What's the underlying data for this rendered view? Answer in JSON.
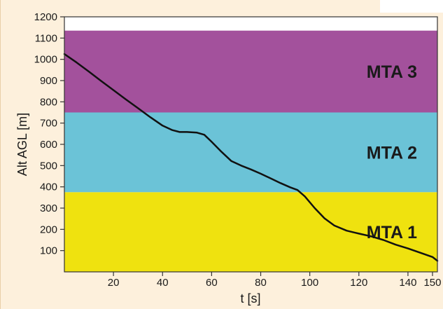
{
  "chart_data": {
    "type": "line",
    "title": "",
    "xlabel": "t [s]",
    "ylabel": "Alt AGL [m]",
    "xlim": [
      0,
      152
    ],
    "ylim": [
      0,
      1200
    ],
    "xticks": [
      20,
      40,
      60,
      80,
      100,
      120,
      140,
      150
    ],
    "yticks": [
      100,
      200,
      300,
      400,
      500,
      600,
      700,
      800,
      900,
      1000,
      1100,
      1200
    ],
    "grid": false,
    "legend": "none",
    "bands": [
      {
        "label": "MTA 1",
        "from": 0,
        "to": 375,
        "color": "#efe20f"
      },
      {
        "label": "MTA 2",
        "from": 375,
        "to": 750,
        "color": "#6bc3d7"
      },
      {
        "label": "MTA 3",
        "from": 750,
        "to": 1135,
        "color": "#a3519c"
      }
    ],
    "series": [
      {
        "color": "#111111",
        "x": [
          0,
          5,
          10,
          15,
          20,
          25,
          30,
          35,
          40,
          44,
          47,
          50,
          54,
          57,
          60,
          64,
          68,
          72,
          76,
          80,
          84,
          88,
          92,
          95,
          98,
          102,
          106,
          110,
          115,
          120,
          125,
          130,
          135,
          140,
          145,
          150,
          152
        ],
        "y": [
          1025,
          985,
          942,
          898,
          855,
          812,
          770,
          728,
          688,
          667,
          658,
          658,
          655,
          645,
          612,
          565,
          522,
          500,
          482,
          462,
          440,
          418,
          398,
          385,
          355,
          300,
          252,
          218,
          194,
          180,
          167,
          150,
          128,
          110,
          90,
          70,
          52
        ]
      }
    ]
  }
}
